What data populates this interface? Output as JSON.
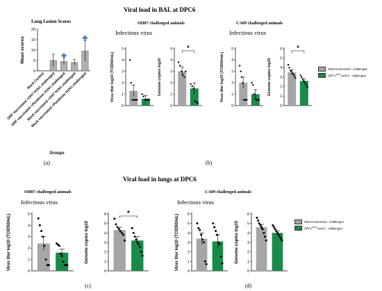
{
  "headings": {
    "top": "Viral load  in BAL at DPC6",
    "bottom": "Viral load in lungs at DPC6"
  },
  "subheads": {
    "a_title": "Lung Lesion Scores",
    "b_left": "OH07 challenged animals",
    "b_right": "CA09 challenged animals",
    "c": "OH07 challenged animals",
    "d": "CA09 challenged animals"
  },
  "infectious_label": "Infectious virus",
  "panel_labels": {
    "a": "(a)",
    "b": "(b)",
    "c": "(c)",
    "d": "(d)"
  },
  "legend": {
    "sham": "Sham-immunized - challenged",
    "orf": "ORFV",
    "orf_sup": "Δ121",
    "orf_rest": "conH1 - challenged",
    "sham_color": "#a6a6a6",
    "orf_color": "#1a8a4a"
  },
  "chart_data": [
    {
      "id": "a",
      "type": "bar",
      "title": "Lung Lesion Scores",
      "ylabel": "Mean scores",
      "xlabel": "Groups",
      "ylim": [
        0,
        20
      ],
      "yticks": [
        0,
        5,
        10,
        15,
        20
      ],
      "categories": [
        "Mock Control",
        "ORF Vaccinated +OH7 H1N1 challenged",
        "ORF vaccinated +Pandemic H1N1 challenged",
        "Mock vaccinated +OH7 H1N1 challenged",
        "Mock vaccinated +Pandemic H1N1 challenged"
      ],
      "values": [
        0,
        5,
        4.5,
        4,
        9.5
      ],
      "errors": [
        0,
        3,
        1.5,
        1.5,
        5
      ],
      "markers": [
        false,
        false,
        true,
        false,
        true
      ],
      "marker_color": "#4a7fc1"
    },
    {
      "id": "b1",
      "type": "bar",
      "ylabel": "Virus titer log10 (TCID50/mL)",
      "ylim": [
        0,
        5
      ],
      "yticks": [
        0,
        1,
        2,
        3,
        4,
        5
      ],
      "series": [
        {
          "name": "Sham-immunized - challenged",
          "value": 1.3,
          "err": 0.5,
          "points": [
            4,
            2,
            0.5,
            0.5,
            0.5,
            0.5,
            0.5
          ]
        },
        {
          "name": "ORFVΔ121conH1 - challenged",
          "value": 0.6,
          "err": 0.3,
          "points": [
            1.0,
            0.8,
            0.5,
            0.5,
            0.5,
            0.5
          ]
        }
      ]
    },
    {
      "id": "b2",
      "type": "bar",
      "ylabel": "Genome copies log10",
      "ylim": [
        0,
        5
      ],
      "yticks": [
        0,
        1,
        2,
        3,
        4,
        5
      ],
      "significance": "*",
      "series": [
        {
          "name": "Sham-immunized - challenged",
          "value": 3.0,
          "err": 0.4,
          "points": [
            3.8,
            3.5,
            3.0,
            2.7,
            2.5,
            3.0
          ]
        },
        {
          "name": "ORFVΔ121conH1 - challenged",
          "value": 1.5,
          "err": 0.5,
          "points": [
            1.9,
            1.7,
            1.5,
            0.4,
            0.3,
            0.2
          ]
        }
      ]
    },
    {
      "id": "b3",
      "type": "bar",
      "ylabel": "Virus titer log10 (TCID50/mL)",
      "ylim": [
        0,
        5
      ],
      "yticks": [
        0,
        1,
        2,
        3,
        4,
        5
      ],
      "series": [
        {
          "name": "Sham-immunized - challenged",
          "value": 2.0,
          "err": 0.5,
          "points": [
            3.5,
            3.0,
            2.5,
            2.0,
            0.5,
            0.5,
            0.5,
            0.5
          ]
        },
        {
          "name": "ORFVΔ121conH1 - challenged",
          "value": 1.0,
          "err": 0.4,
          "points": [
            2.0,
            1.8,
            1.0,
            0.6,
            0.5,
            0.5,
            0.5
          ]
        }
      ]
    },
    {
      "id": "b4",
      "type": "bar",
      "ylabel": "Genome copies log10",
      "ylim": [
        0,
        6
      ],
      "yticks": [
        0,
        1,
        2,
        3,
        4,
        5,
        6
      ],
      "significance": "*",
      "series": [
        {
          "name": "Sham-immunized - challenged",
          "value": 3.5,
          "err": 0.25,
          "points": [
            4.3,
            4.0,
            3.7,
            3.6,
            3.4,
            3.3,
            3.1,
            2.9
          ]
        },
        {
          "name": "ORFVΔ121conH1 - challenged",
          "value": 2.6,
          "err": 0.2,
          "points": [
            3.2,
            3.0,
            2.8,
            2.6,
            2.5,
            2.3,
            2.1,
            1.9
          ]
        }
      ]
    },
    {
      "id": "c1",
      "type": "bar",
      "ylabel": "Virus titer log10 (TCID50/mL)",
      "ylim": [
        0,
        5
      ],
      "yticks": [
        0,
        1,
        2,
        3,
        4,
        5
      ],
      "series": [
        {
          "name": "Sham-immunized - challenged",
          "value": 2.4,
          "err": 0.6,
          "points": [
            4.6,
            4.0,
            3.5,
            3.0,
            2.2,
            1.0,
            0.5,
            0.5
          ]
        },
        {
          "name": "ORFVΔ121conH1 - challenged",
          "value": 1.6,
          "err": 0.3,
          "points": [
            2.4,
            2.3,
            2.2,
            1.5,
            1.3,
            0.8,
            0.5,
            0.5,
            0.5
          ]
        }
      ]
    },
    {
      "id": "c2",
      "type": "bar",
      "ylabel": "Genome copies log10",
      "ylim": [
        0,
        6
      ],
      "yticks": [
        0,
        1,
        2,
        3,
        4,
        5,
        6
      ],
      "significance": "*",
      "series": [
        {
          "name": "Sham-immunized - challenged",
          "value": 4.3,
          "err": 0.3,
          "points": [
            5.5,
            4.9,
            4.6,
            4.4,
            4.2,
            4.0,
            3.8,
            3.2
          ]
        },
        {
          "name": "ORFVΔ121conH1 - challenged",
          "value": 3.2,
          "err": 0.4,
          "points": [
            4.5,
            4.0,
            3.6,
            3.3,
            3.0,
            2.8,
            2.5,
            2.0,
            1.6
          ]
        }
      ]
    },
    {
      "id": "d1",
      "type": "bar",
      "ylabel": "Virus titer log10 (TCID50/mL)",
      "ylim": [
        0,
        6
      ],
      "yticks": [
        0,
        1,
        2,
        3,
        4,
        5,
        6
      ],
      "series": [
        {
          "name": "Sham-immunized - challenged",
          "value": 3.4,
          "err": 0.6,
          "points": [
            5.0,
            4.5,
            4.3,
            3.8,
            3.3,
            3.0,
            1.0,
            0.7
          ]
        },
        {
          "name": "ORFVΔ121conH1 - challenged",
          "value": 3.1,
          "err": 0.7,
          "points": [
            5.0,
            4.6,
            4.2,
            3.8,
            3.0,
            2.8,
            1.5,
            0.8
          ]
        }
      ]
    },
    {
      "id": "d2",
      "type": "bar",
      "ylabel": "Genome copies log10",
      "ylim": [
        0,
        6
      ],
      "yticks": [
        0,
        1,
        2,
        3,
        4,
        5,
        6
      ],
      "series": [
        {
          "name": "Sham-immunized - challenged",
          "value": 4.6,
          "err": 0.3,
          "points": [
            5.6,
            5.3,
            5.0,
            4.8,
            4.6,
            4.4,
            4.0,
            3.6,
            3.2
          ]
        },
        {
          "name": "ORFVΔ121conH1 - challenged",
          "value": 4.0,
          "err": 0.2,
          "points": [
            4.8,
            4.6,
            4.4,
            4.2,
            4.0,
            3.8,
            3.6,
            3.4,
            3.2
          ]
        }
      ]
    }
  ]
}
